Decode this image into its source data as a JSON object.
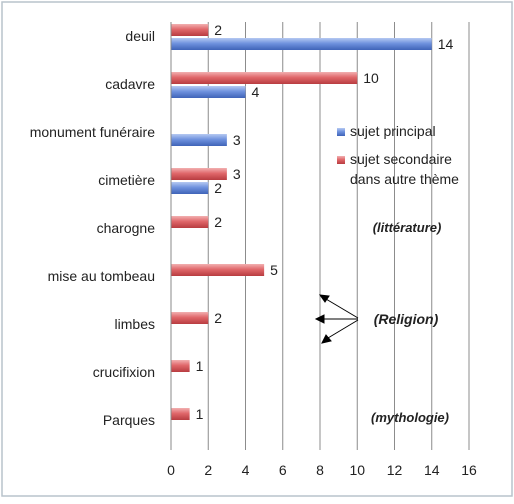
{
  "chart_data": {
    "type": "bar",
    "orientation": "horizontal",
    "categories": [
      "deuil",
      "cadavre",
      "monument funéraire",
      "cimetière",
      "charogne",
      "mise au tombeau",
      "limbes",
      "crucifixion",
      "Parques"
    ],
    "series": [
      {
        "name": "sujet principal",
        "color": "#6f92de",
        "values": [
          14,
          4,
          3,
          2,
          null,
          null,
          null,
          null,
          null
        ]
      },
      {
        "name": "sujet secondaire dans autre thème",
        "color": "#e0676a",
        "values": [
          2,
          10,
          null,
          3,
          2,
          5,
          2,
          1,
          1
        ]
      }
    ],
    "xlim": [
      0,
      16
    ],
    "xticks": [
      0,
      2,
      4,
      6,
      8,
      10,
      12,
      14,
      16
    ],
    "grid": true,
    "legend_position": "right",
    "legend_labels": [
      "sujet principal",
      "sujet secondaire",
      "dans autre thème"
    ],
    "annotations": [
      "(littérature)",
      "(Religion)",
      "(mythologie)"
    ]
  }
}
